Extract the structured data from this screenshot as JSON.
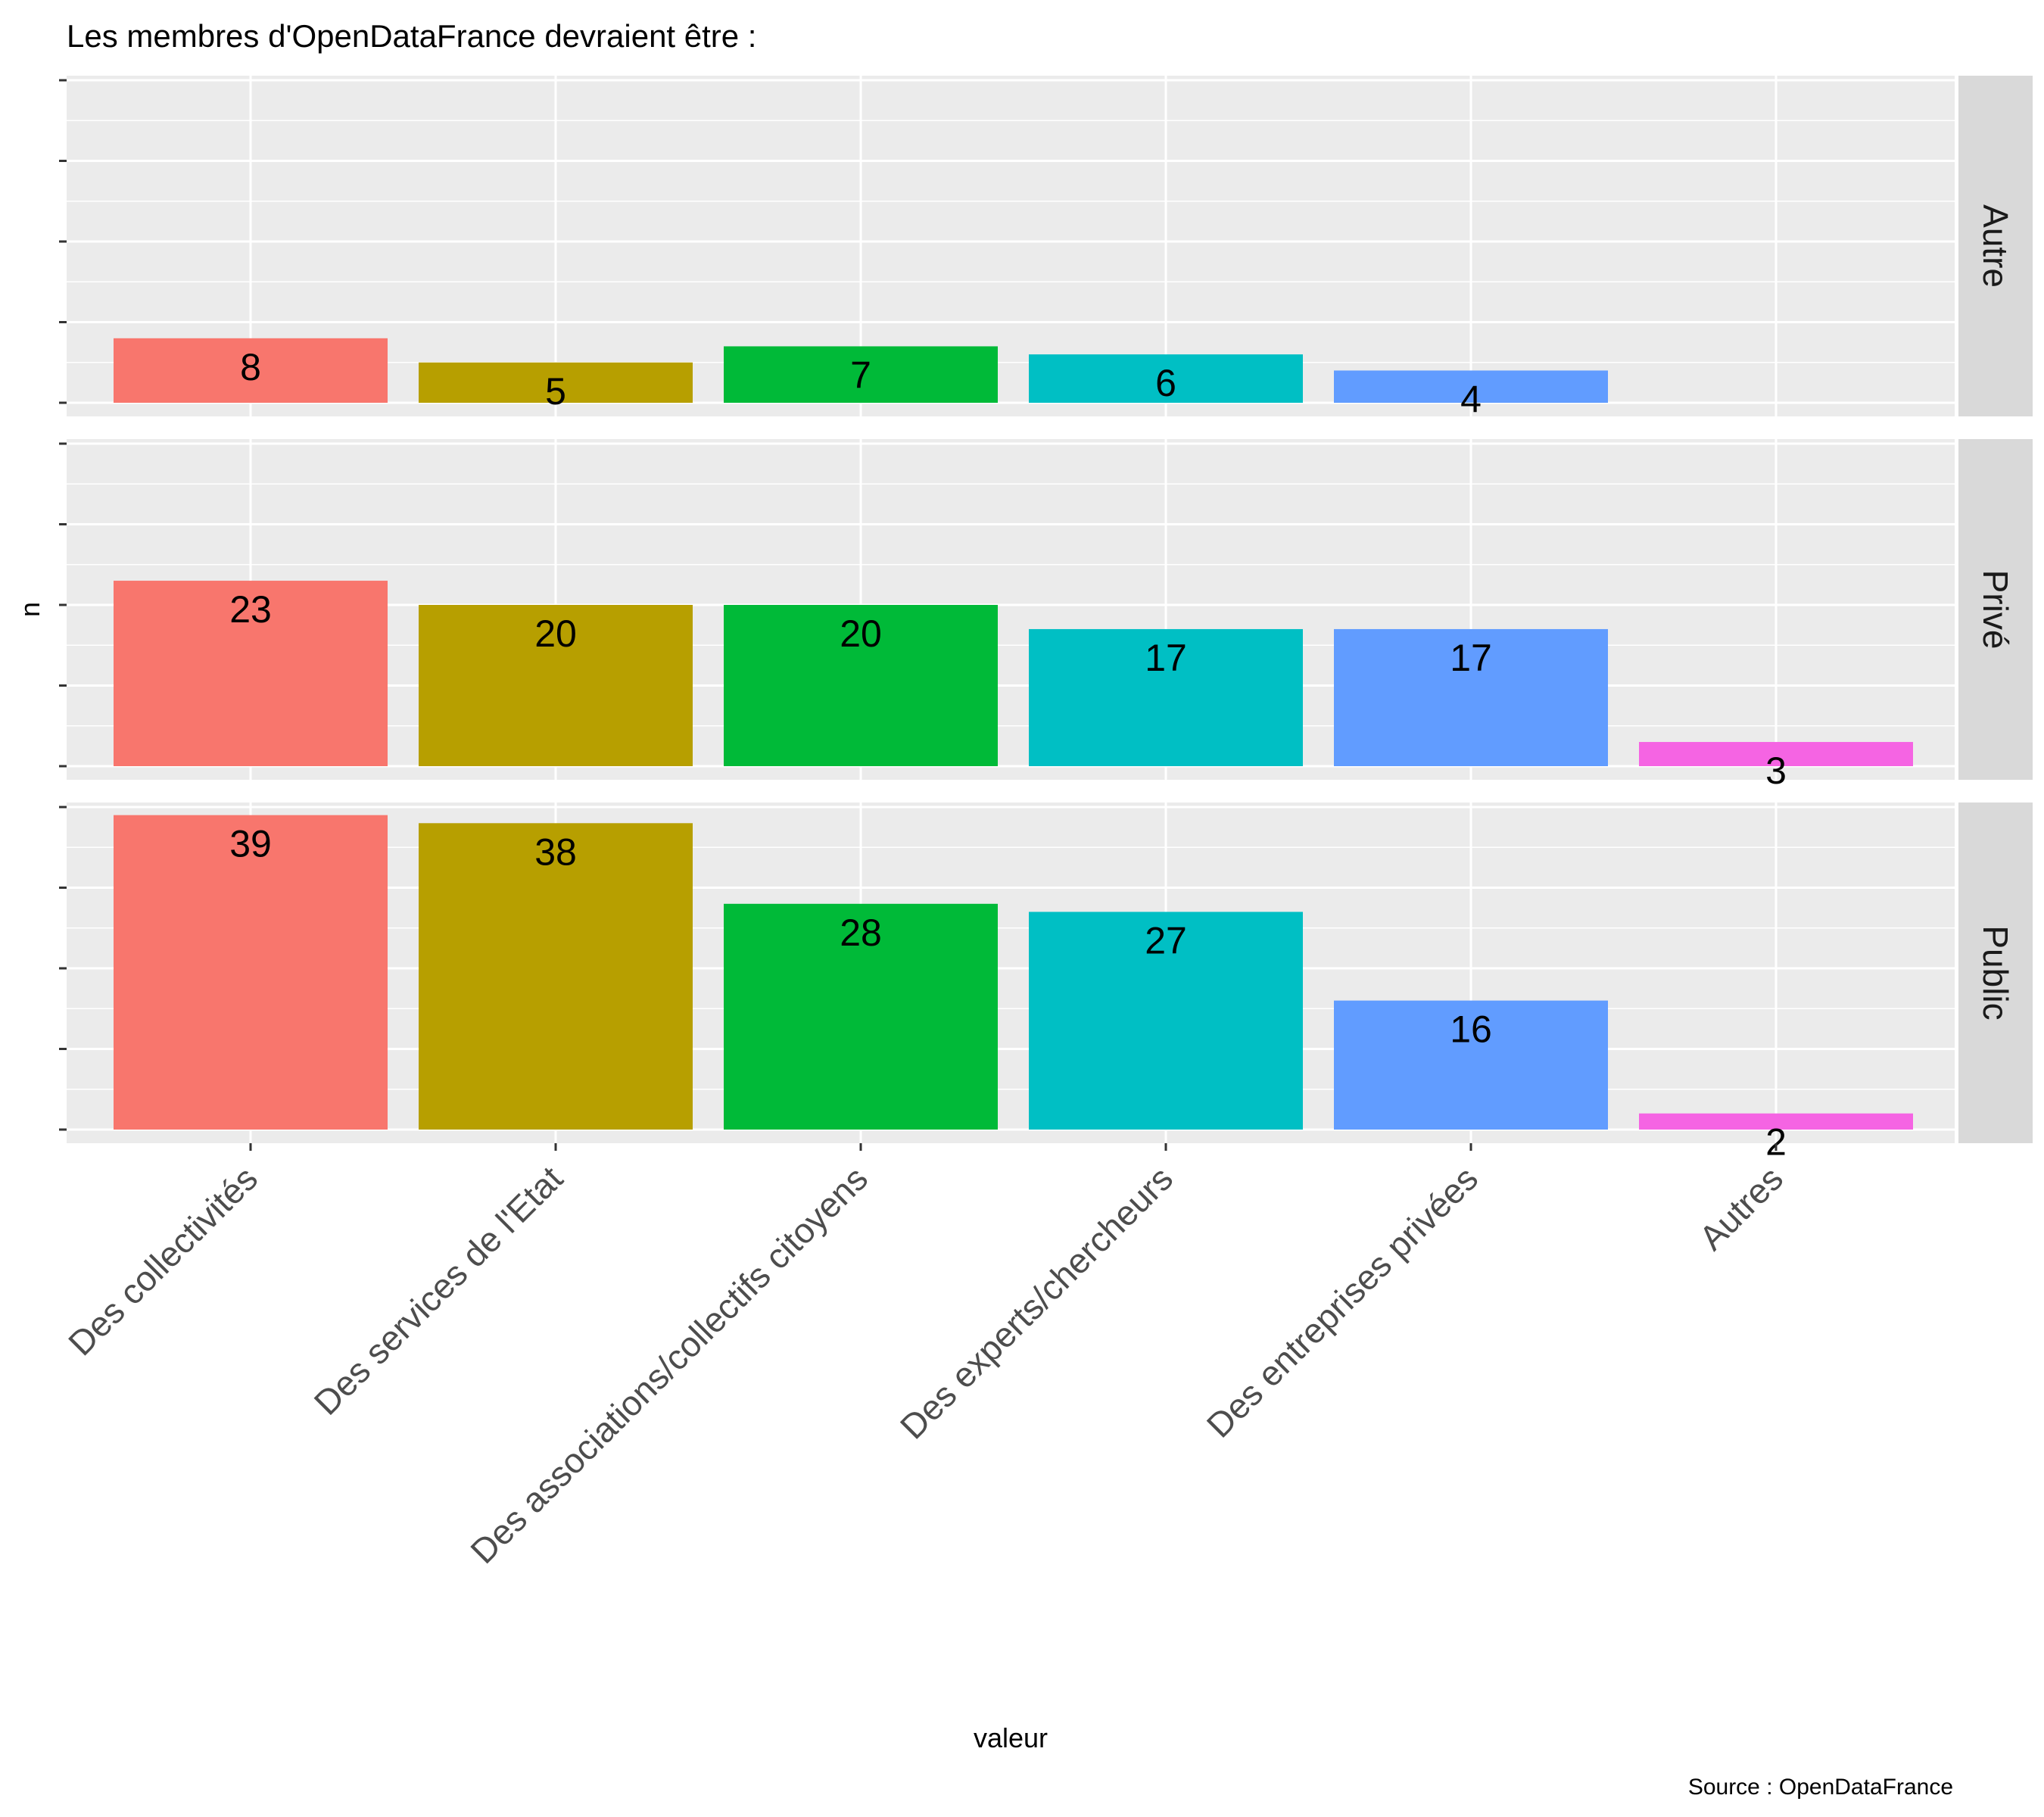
{
  "chart_data": {
    "type": "bar",
    "title": "Les membres d'OpenDataFrance devraient être :",
    "caption": "Source : OpenDataFrance",
    "xlabel": "valeur",
    "ylabel": "n",
    "categories": [
      "Des collectivités",
      "Des services de l'Etat",
      "Des associations/collectifs citoyens",
      "Des experts/chercheurs",
      "Des entreprises privées",
      "Autres"
    ],
    "colors": [
      "#F8766D",
      "#B79F00",
      "#00BA38",
      "#00BFC4",
      "#619CFF",
      "#F564E3"
    ],
    "facets": [
      {
        "label": "Autre",
        "values": [
          8,
          5,
          7,
          6,
          4,
          0
        ],
        "ylim": [
          0,
          40
        ]
      },
      {
        "label": "Privé",
        "values": [
          23,
          20,
          20,
          17,
          17,
          3
        ],
        "ylim": [
          0,
          40
        ]
      },
      {
        "label": "Public",
        "values": [
          39,
          38,
          28,
          27,
          16,
          2
        ],
        "ylim": [
          0,
          40
        ]
      }
    ],
    "y_major_ticks": [
      0,
      10,
      20,
      30,
      40
    ],
    "y_tick_labels_shown": false,
    "grid": true,
    "legend": "none"
  }
}
